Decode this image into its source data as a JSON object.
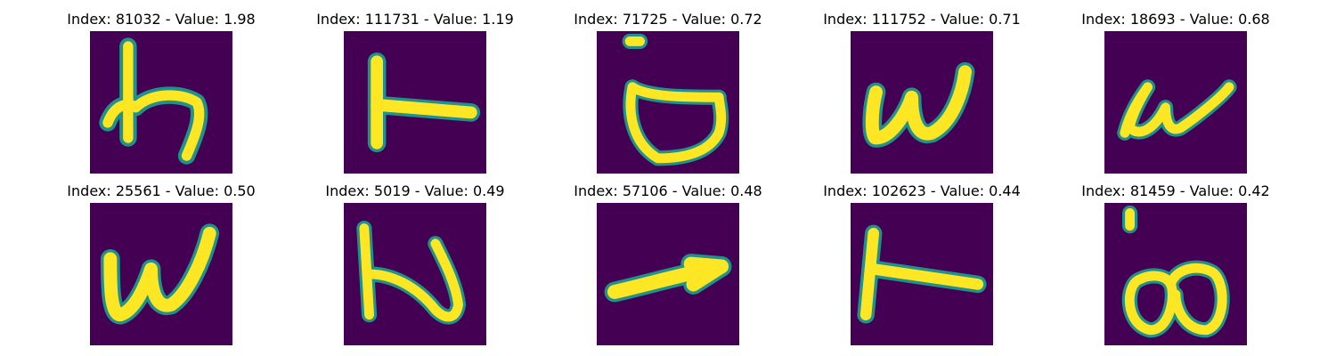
{
  "colors": {
    "background": "#440154",
    "stroke": "#fde725",
    "edge": "#21918c"
  },
  "panels": [
    {
      "title": "Index: 81032 - Value: 1.98",
      "glyph": "h-like"
    },
    {
      "title": "Index: 111731 - Value: 1.19",
      "glyph": "t-sideways"
    },
    {
      "title": "Index: 71725 - Value: 0.72",
      "glyph": "dotted-bowl"
    },
    {
      "title": "Index: 111752 - Value: 0.71",
      "glyph": "w"
    },
    {
      "title": "Index: 18693 - Value: 0.68",
      "glyph": "cursive-w"
    },
    {
      "title": "Index: 25561 - Value: 0.50",
      "glyph": "w"
    },
    {
      "title": "Index: 5019 - Value: 0.49",
      "glyph": "z-like"
    },
    {
      "title": "Index: 57106 - Value: 0.48",
      "glyph": "arrow"
    },
    {
      "title": "Index: 102623 - Value: 0.44",
      "glyph": "t-sideways"
    },
    {
      "title": "Index: 81459 - Value: 0.42",
      "glyph": "dotted-double-loop"
    }
  ]
}
